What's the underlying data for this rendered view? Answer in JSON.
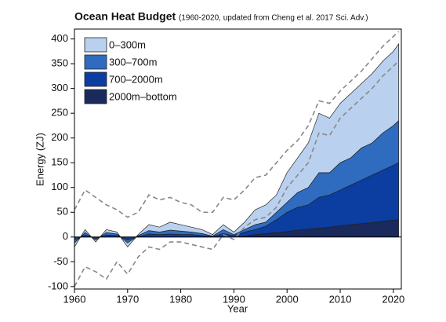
{
  "chart_data": {
    "type": "stacked-area",
    "title": "Ocean Heat Budget",
    "subtitle": "(1960-2020, updated from Cheng et al. 2017 Sci. Adv.)",
    "x_label": "Year",
    "y_label": "Energy (ZJ)",
    "x": [
      1960,
      1962,
      1964,
      1966,
      1968,
      1970,
      1972,
      1974,
      1976,
      1978,
      1980,
      1982,
      1984,
      1986,
      1988,
      1990,
      1992,
      1994,
      1996,
      1998,
      2000,
      2002,
      2004,
      2006,
      2008,
      2010,
      2012,
      2014,
      2016,
      2018,
      2020,
      2021
    ],
    "series": [
      {
        "name": "0–300m",
        "color": "#b9d1ee",
        "values": [
          -8,
          6,
          -4,
          6,
          4,
          -8,
          2,
          12,
          10,
          16,
          13,
          10,
          8,
          3,
          10,
          5,
          15,
          30,
          35,
          35,
          60,
          70,
          90,
          120,
          110,
          120,
          130,
          130,
          140,
          145,
          150,
          155
        ]
      },
      {
        "name": "300–700m",
        "color": "#2f6cc0",
        "values": [
          -6,
          5,
          -3,
          5,
          3,
          -6,
          2,
          7,
          5,
          8,
          7,
          5,
          4,
          1,
          8,
          2,
          5,
          10,
          8,
          15,
          20,
          30,
          35,
          50,
          45,
          55,
          55,
          65,
          65,
          75,
          80,
          85
        ]
      },
      {
        "name": "700–2000m",
        "color": "#0b3ea0",
        "values": [
          -6,
          4,
          -3,
          4,
          3,
          -6,
          1,
          6,
          5,
          6,
          5,
          5,
          3,
          1,
          7,
          3,
          8,
          10,
          15,
          26,
          39,
          46,
          49,
          62,
          65,
          72,
          80,
          88,
          96,
          103,
          111,
          115
        ]
      },
      {
        "name": "2000m–bottom",
        "color": "#1b2a5c",
        "values": [
          0,
          0,
          0,
          0,
          0,
          0,
          0,
          0,
          0,
          0,
          0,
          0,
          0,
          0,
          0,
          0,
          2,
          5,
          7,
          9,
          11,
          14,
          16,
          18,
          20,
          23,
          25,
          27,
          29,
          32,
          34,
          35
        ]
      }
    ],
    "uncertainty": {
      "color": "#888888",
      "upper": [
        55,
        95,
        80,
        65,
        55,
        40,
        50,
        85,
        75,
        80,
        70,
        65,
        50,
        50,
        80,
        75,
        95,
        120,
        125,
        150,
        175,
        195,
        225,
        275,
        270,
        295,
        315,
        335,
        360,
        385,
        405,
        415
      ],
      "lower": [
        -100,
        -60,
        -70,
        -85,
        -50,
        -75,
        -40,
        -20,
        -25,
        -10,
        -10,
        -15,
        -20,
        -25,
        5,
        -5,
        20,
        35,
        40,
        60,
        100,
        125,
        150,
        210,
        205,
        240,
        260,
        280,
        300,
        325,
        345,
        355
      ]
    },
    "xlim": [
      1960,
      2021.5
    ],
    "ylim": [
      -105,
      420
    ],
    "xticks": [
      1960,
      1970,
      1980,
      1990,
      2000,
      2010,
      2020
    ],
    "yticks": [
      -100,
      -50,
      0,
      50,
      100,
      150,
      200,
      250,
      300,
      350,
      400
    ],
    "legend": "upper-left"
  }
}
